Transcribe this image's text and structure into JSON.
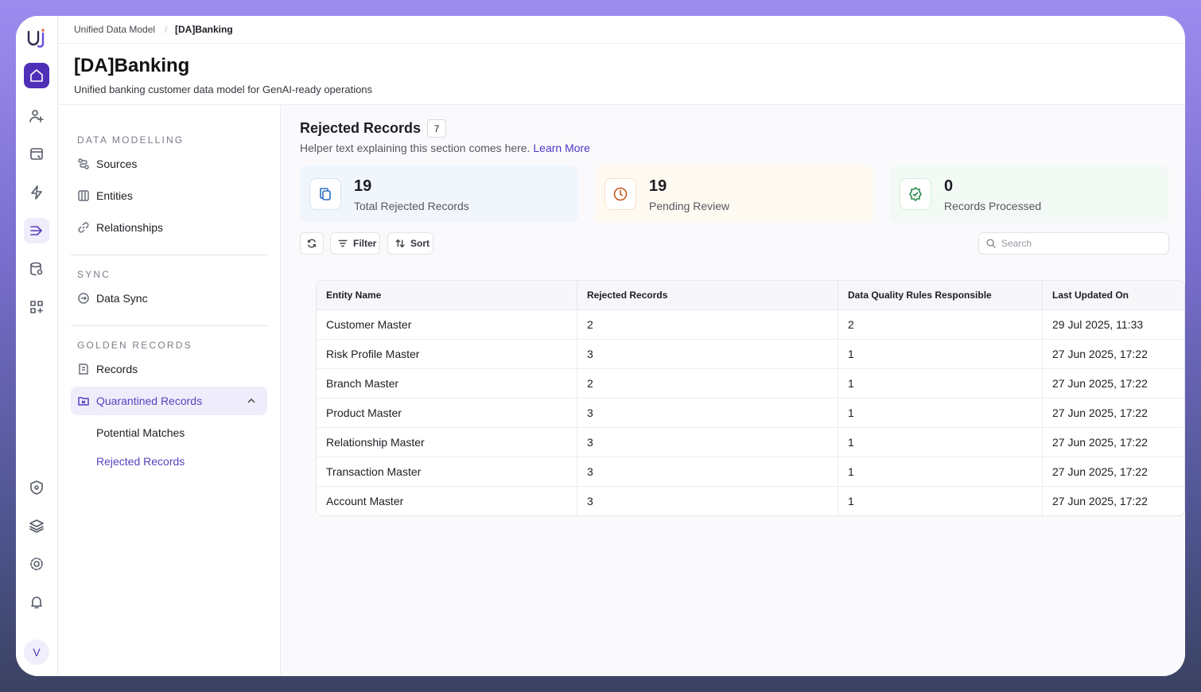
{
  "breadcrumb": [
    "Unified Data Model",
    "[DA]Banking"
  ],
  "header": {
    "title": "[DA]Banking",
    "subtitle": "Unified banking customer data model for GenAI-ready operations"
  },
  "nav": {
    "sections": [
      {
        "title": "DATA MODELLING",
        "items": [
          "Sources",
          "Entities",
          "Relationships"
        ]
      },
      {
        "title": "SYNC",
        "items": [
          "Data Sync"
        ]
      },
      {
        "title": "GOLDEN RECORDS",
        "items": [
          "Records",
          "Quarantined Records"
        ],
        "sub_items": [
          "Potential Matches",
          "Rejected Records"
        ]
      }
    ]
  },
  "avatar": "V",
  "section": {
    "title": "Rejected Records",
    "count": 7,
    "helper": "Helper text explaining this section comes here.",
    "link": "Learn More"
  },
  "stats": [
    {
      "value": 19,
      "label": "Total Rejected Records"
    },
    {
      "value": 19,
      "label": "Pending Review"
    },
    {
      "value": 0,
      "label": "Records Processed"
    }
  ],
  "toolbar": {
    "filter": "Filter",
    "sort": "Sort",
    "search_placeholder": "Search"
  },
  "table": {
    "columns": [
      "Entity Name",
      "Rejected Records",
      "Data Quality Rules Responsible",
      "Last Updated On"
    ],
    "rows": [
      [
        "Customer Master",
        "2",
        "2",
        "29 Jul 2025, 11:33"
      ],
      [
        "Risk Profile Master",
        "3",
        "1",
        "27 Jun 2025, 17:22"
      ],
      [
        "Branch Master",
        "2",
        "1",
        "27 Jun 2025, 17:22"
      ],
      [
        "Product Master",
        "3",
        "1",
        "27 Jun 2025, 17:22"
      ],
      [
        "Relationship Master",
        "3",
        "1",
        "27 Jun 2025, 17:22"
      ],
      [
        "Transaction Master",
        "3",
        "1",
        "27 Jun 2025, 17:22"
      ],
      [
        "Account Master",
        "3",
        "1",
        "27 Jun 2025, 17:22"
      ]
    ]
  }
}
